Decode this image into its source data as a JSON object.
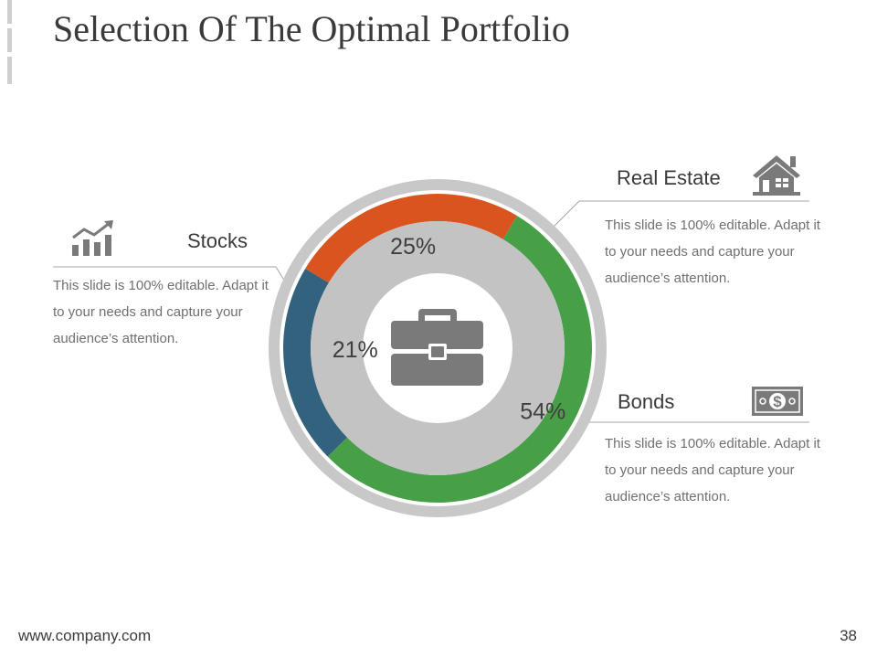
{
  "slide": {
    "title": "Selection Of The Optimal Portfolio",
    "footer_url": "www.company.com",
    "page_number": "38"
  },
  "chart_data": {
    "type": "pie",
    "title": "",
    "center_icon": "briefcase-icon",
    "slices": [
      {
        "name": "Real Estate",
        "value": 25,
        "label": "25%",
        "color": "#D9541E"
      },
      {
        "name": "Bonds",
        "value": 54,
        "label": "54%",
        "color": "#47A047"
      },
      {
        "name": "Stocks",
        "value": 21,
        "label": "21%",
        "color": "#33627F"
      }
    ]
  },
  "callouts": {
    "stocks": {
      "heading": "Stocks",
      "icon": "bar-chart-growth-icon",
      "text": "This slide is 100% editable. Adapt it to your needs and capture your audience’s attention."
    },
    "real_estate": {
      "heading": "Real Estate",
      "icon": "house-icon",
      "text": "This slide is 100% editable. Adapt it to your needs and capture your audience’s attention."
    },
    "bonds": {
      "heading": "Bonds",
      "icon": "dollar-bill-icon",
      "text": "This slide is 100% editable. Adapt it to your needs and capture your audience’s attention."
    }
  },
  "colors": {
    "outer_ring": "#C8C8C8",
    "inner_disc": "#C3C3C3",
    "icon_gray": "#7A7A7A",
    "leader_line": "#A6A6A6"
  }
}
